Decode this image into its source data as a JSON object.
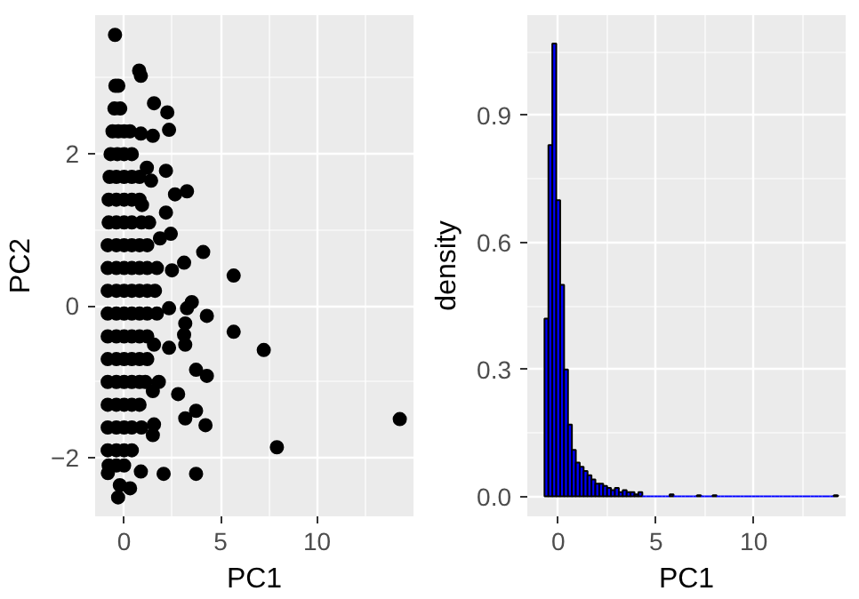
{
  "chart_data": [
    {
      "type": "scatter",
      "xlabel": "PC1",
      "ylabel": "PC2",
      "marker": "circle",
      "grid": true,
      "xlim": [
        -1.5,
        15
      ],
      "ylim": [
        -2.77,
        3.83
      ],
      "xticks": [
        0,
        5,
        10
      ],
      "yticks": [
        -2,
        0,
        2
      ],
      "series": [
        {
          "color": "#000000",
          "x": [
            -0.45,
            -0.3,
            -0.5,
            -0.2,
            -0.6,
            -0.3,
            0.0,
            0.3,
            -0.7,
            -0.35,
            0.0,
            0.4,
            -0.75,
            -0.4,
            0.0,
            0.4,
            0.8,
            -0.8,
            -0.4,
            0.0,
            0.4,
            0.8,
            -0.8,
            -0.4,
            0.0,
            0.4,
            0.9,
            1.3,
            -0.85,
            -0.4,
            0.0,
            0.4,
            0.8,
            1.2,
            -0.85,
            -0.4,
            0.0,
            0.4,
            0.8,
            1.2,
            1.7,
            -0.85,
            -0.4,
            0.0,
            0.4,
            0.8,
            1.2,
            1.6,
            -0.85,
            -0.4,
            0.0,
            0.4,
            0.8,
            1.2,
            1.7,
            -0.85,
            -0.4,
            0.0,
            0.4,
            0.8,
            1.2,
            -0.85,
            -0.4,
            0.0,
            0.4,
            0.8,
            1.2,
            -0.85,
            -0.4,
            0.0,
            0.4,
            0.8,
            1.1,
            -0.85,
            -0.4,
            0.0,
            0.4,
            0.8,
            -0.85,
            -0.4,
            0.0,
            0.4,
            0.9,
            -0.85,
            -0.4,
            0.0,
            0.4,
            -0.8,
            -0.4,
            0.0,
            -0.47,
            0.78,
            0.87,
            1.55,
            2.24,
            2.33,
            1.49,
            0.87,
            2.17,
            1.4,
            1.18,
            2.64,
            3.26,
            2.17,
            0.93,
            2.42,
            1.86,
            4.1,
            3.11,
            5.68,
            2.48,
            3.51,
            3.26,
            4.29,
            2.33,
            5.68,
            3.17,
            3.11,
            3.17,
            7.24,
            2.33,
            1.55,
            3.73,
            4.29,
            1.8,
            1.49,
            2.8,
            3.73,
            3.17,
            4.22,
            1.55,
            1.49,
            14.29,
            7.92,
            0.87,
            2.05,
            3.73,
            -0.84,
            -0.22,
            0.31,
            -0.31
          ],
          "values": [
            2.9,
            2.9,
            2.6,
            2.6,
            2.3,
            2.3,
            2.3,
            2.3,
            2.0,
            2.0,
            2.0,
            2.0,
            1.7,
            1.7,
            1.7,
            1.7,
            1.7,
            1.4,
            1.4,
            1.4,
            1.4,
            1.4,
            1.1,
            1.1,
            1.1,
            1.1,
            1.1,
            1.1,
            0.8,
            0.8,
            0.8,
            0.8,
            0.8,
            0.8,
            0.5,
            0.5,
            0.5,
            0.5,
            0.5,
            0.5,
            0.5,
            0.2,
            0.2,
            0.2,
            0.2,
            0.2,
            0.2,
            0.2,
            -0.1,
            -0.1,
            -0.1,
            -0.1,
            -0.1,
            -0.1,
            -0.1,
            -0.4,
            -0.4,
            -0.4,
            -0.4,
            -0.4,
            -0.4,
            -0.7,
            -0.7,
            -0.7,
            -0.7,
            -0.7,
            -0.7,
            -1.0,
            -1.0,
            -1.0,
            -1.0,
            -1.0,
            -1.0,
            -1.3,
            -1.3,
            -1.3,
            -1.3,
            -1.3,
            -1.6,
            -1.6,
            -1.6,
            -1.6,
            -1.6,
            -1.9,
            -1.9,
            -1.9,
            -1.9,
            -2.1,
            -2.1,
            -2.1,
            3.57,
            3.1,
            3.03,
            2.67,
            2.55,
            2.32,
            2.24,
            2.27,
            1.78,
            1.65,
            1.82,
            1.47,
            1.51,
            1.23,
            1.33,
            0.95,
            0.89,
            0.71,
            0.57,
            0.4,
            0.47,
            0.05,
            -0.03,
            -0.13,
            -0.03,
            -0.34,
            -0.23,
            -0.38,
            -0.51,
            -0.58,
            -0.55,
            -0.51,
            -0.84,
            -0.92,
            -1.0,
            -1.12,
            -1.16,
            -1.38,
            -1.48,
            -1.57,
            -1.56,
            -1.7,
            -1.49,
            -1.86,
            -2.18,
            -2.21,
            -2.21,
            -2.2,
            -2.36,
            -2.4,
            -2.52
          ]
        }
      ]
    },
    {
      "type": "histogram",
      "xlabel": "PC1",
      "ylabel": "density",
      "grid": true,
      "xlim": [
        -1.58,
        14.7
      ],
      "ylim": [
        -0.047,
        1.137
      ],
      "xticks": [
        0,
        5,
        10
      ],
      "yticks": [
        {
          "value": 0,
          "label": "0.0"
        },
        {
          "value": 0.3,
          "label": "0.3"
        },
        {
          "value": 0.6,
          "label": "0.6"
        },
        {
          "value": 0.9,
          "label": "0.9"
        }
      ],
      "bins": [
        -0.7,
        -0.5,
        -0.3,
        -0.1,
        0.1,
        0.3,
        0.5,
        0.7,
        0.9,
        1.1,
        1.3,
        1.5,
        1.7,
        1.9,
        2.1,
        2.3,
        2.5,
        2.7,
        2.9,
        3.1,
        3.3,
        3.5,
        3.7,
        3.9,
        4.1,
        4.3,
        4.5,
        4.7,
        4.9,
        5.1,
        5.3,
        5.5,
        5.7,
        5.9,
        6.1,
        6.3,
        6.5,
        6.7,
        6.9,
        7.1,
        7.3,
        7.5,
        7.7,
        7.9,
        8.1,
        8.3,
        8.5,
        8.7,
        8.9,
        9.1,
        9.3,
        9.5,
        9.7,
        9.9,
        10.1,
        10.3,
        10.5,
        10.7,
        10.9,
        11.1,
        11.3,
        11.5,
        11.7,
        11.9,
        12.1,
        12.3,
        12.5,
        12.7,
        12.9,
        13.1,
        13.3,
        13.5,
        13.7,
        13.9,
        14.1,
        14.3
      ],
      "series": [
        {
          "color": "#0000ff",
          "values": [
            0.42,
            0.83,
            1.07,
            0.7,
            0.5,
            0.3,
            0.17,
            0.11,
            0.08,
            0.07,
            0.06,
            0.05,
            0.04,
            0.03,
            0.03,
            0.025,
            0.02,
            0.015,
            0.02,
            0.01,
            0.015,
            0.01,
            0.01,
            0.005,
            0.01,
            0,
            0,
            0,
            0,
            0,
            0,
            0,
            0.005,
            0,
            0,
            0,
            0,
            0,
            0,
            0.003,
            0,
            0,
            0,
            0.003,
            0,
            0,
            0,
            0,
            0,
            0,
            0,
            0,
            0,
            0,
            0,
            0,
            0,
            0,
            0,
            0,
            0,
            0,
            0,
            0,
            0,
            0,
            0,
            0,
            0,
            0,
            0,
            0,
            0,
            0,
            0.003
          ]
        }
      ]
    }
  ]
}
